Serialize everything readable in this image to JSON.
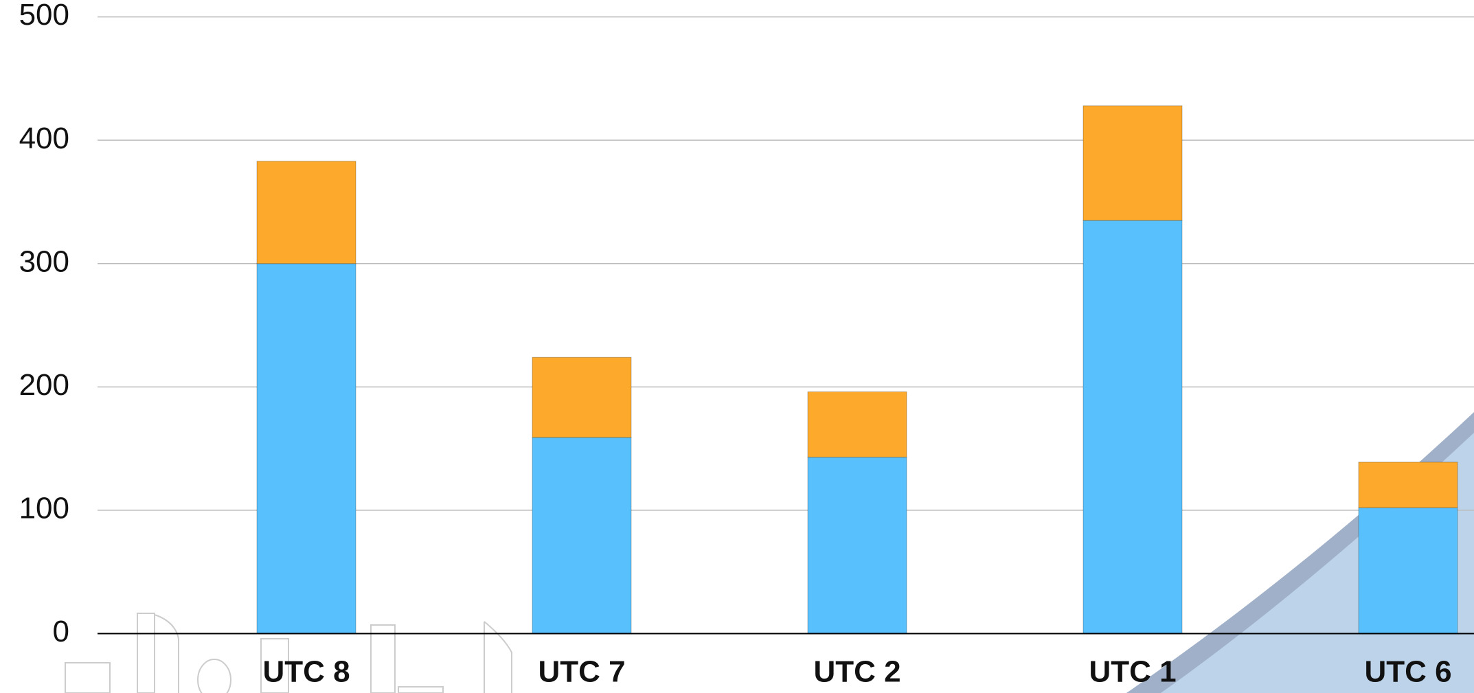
{
  "chart_data": {
    "type": "stacked-bar",
    "categories": [
      "UTC 8",
      "UTC 7",
      "UTC 2",
      "UTC 1",
      "UTC 6"
    ],
    "series": [
      {
        "color": "#57c0fd",
        "values": [
          300,
          159,
          143,
          335,
          102
        ]
      },
      {
        "color": "#fdaa2c",
        "values": [
          83,
          65,
          53,
          93,
          37
        ]
      }
    ],
    "ylim": [
      0,
      500
    ],
    "yticks": [
      0,
      100,
      200,
      300,
      400,
      500
    ],
    "grid": true
  }
}
